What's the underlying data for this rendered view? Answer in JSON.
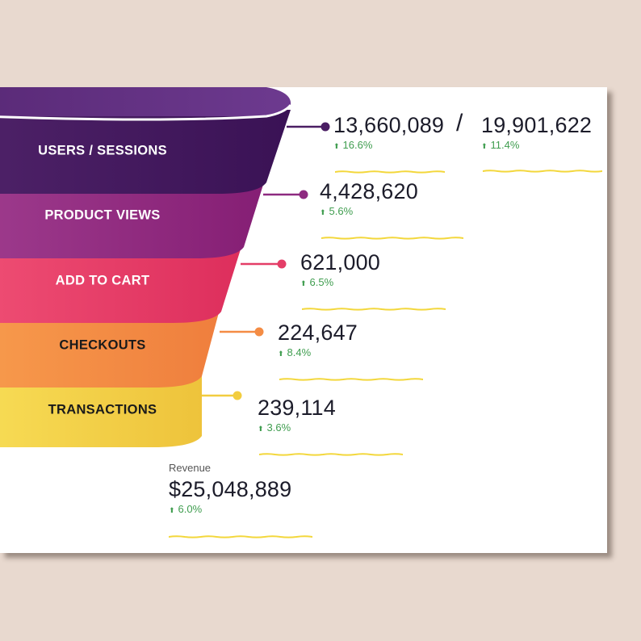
{
  "chart_data": {
    "type": "funnel",
    "stages": [
      {
        "label": "USERS / SESSIONS",
        "value": "13,660,089",
        "change": "16.6%",
        "secondary_value": "19,901,622",
        "secondary_change": "11.4%"
      },
      {
        "label": "PRODUCT VIEWS",
        "value": "4,428,620",
        "change": "5.6%"
      },
      {
        "label": "ADD TO CART",
        "value": "621,000",
        "change": "6.5%"
      },
      {
        "label": "CHECKOUTS",
        "value": "224,647",
        "change": "8.4%"
      },
      {
        "label": "TRANSACTIONS",
        "value": "239,114",
        "change": "3.6%"
      }
    ],
    "revenue": {
      "label": "Revenue",
      "value": "$25,048,889",
      "change": "6.0%"
    }
  },
  "separator": "/",
  "colors": {
    "stage_1": "#4a1e63",
    "stage_2": "#8e2a80",
    "stage_3": "#e43d67",
    "stage_4": "#f48c44",
    "stage_5": "#f2cd3f",
    "positive": "#3f9d4f",
    "underline": "#f3d73b"
  },
  "icons": {
    "change_indicator": "up-arrow-icon"
  }
}
